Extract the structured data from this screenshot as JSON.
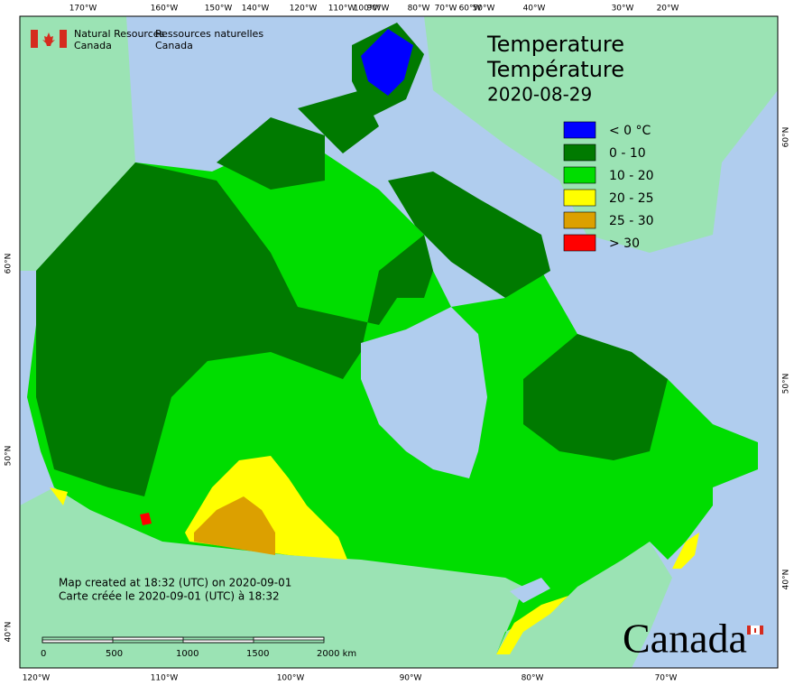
{
  "header": {
    "agency_en": [
      "Natural Resources",
      "Canada"
    ],
    "agency_fr": [
      "Ressources naturelles",
      "Canada"
    ]
  },
  "title": {
    "en": "Temperature",
    "fr": "Température",
    "date": "2020-08-29"
  },
  "legend": [
    {
      "label": "< 0 °C",
      "color": "#0000ff"
    },
    {
      "label": "0 - 10",
      "color": "#007a00"
    },
    {
      "label": "10 - 20",
      "color": "#00dd00"
    },
    {
      "label": "20 - 25",
      "color": "#ffff00"
    },
    {
      "label": "25 - 30",
      "color": "#dca000"
    },
    {
      "label": "> 30",
      "color": "#ff0000"
    }
  ],
  "credit": [
    "Map created at 18:32 (UTC) on 2020-09-01",
    "Carte créée le 2020-09-01 (UTC) à 18:32"
  ],
  "scale_bar": [
    "0",
    "500",
    "1000",
    "1500",
    "2000 km"
  ],
  "graticule": {
    "top": [
      "170°W",
      "160°W",
      "150°W",
      "140°W",
      "120°W",
      "110°W",
      "100°W",
      "90°W",
      "80°W",
      "70°W",
      "60°W",
      "50°W",
      "40°W",
      "30°W",
      "20°W"
    ],
    "bottom": [
      "120°W",
      "110°W",
      "100°W",
      "90°W",
      "80°W",
      "70°W"
    ],
    "left": [
      "60°N",
      "50°N",
      "40°N"
    ],
    "right": [
      "60°N",
      "50°N",
      "40°N"
    ]
  },
  "wordmark": "Canada"
}
